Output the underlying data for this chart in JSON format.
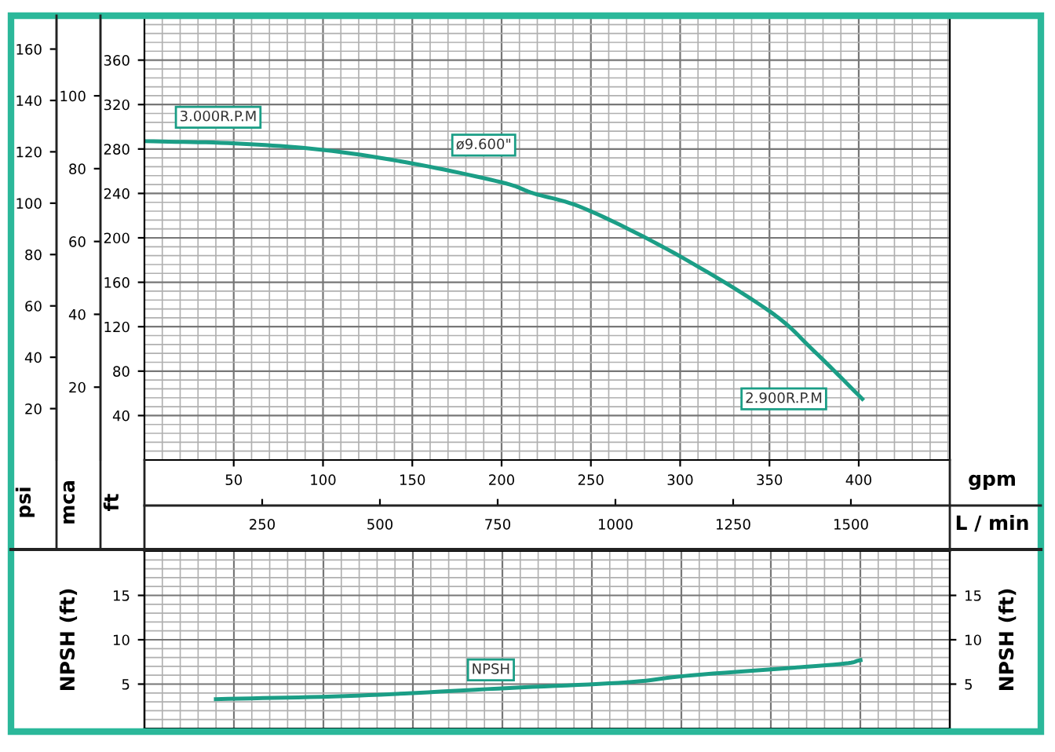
{
  "chart_data": [
    {
      "type": "line",
      "xlabel": "gpm",
      "x2label": "L / min",
      "ylabel": "ft",
      "y2label": "psi",
      "y3label": "mca",
      "xlim": [
        0,
        451
      ],
      "xticks": [
        50,
        100,
        150,
        200,
        250,
        300,
        350,
        400
      ],
      "x2lim": [
        0,
        1710
      ],
      "x2ticks": [
        250,
        500,
        750,
        1000,
        1250,
        1500
      ],
      "ylim": [
        0,
        400
      ],
      "yticks": [
        40,
        80,
        120,
        160,
        200,
        240,
        280,
        320,
        360
      ],
      "y2lim": [
        0,
        173
      ],
      "y2ticks": [
        20,
        40,
        60,
        80,
        100,
        120,
        140,
        160
      ],
      "y3lim": [
        0,
        122
      ],
      "y3ticks": [
        20,
        40,
        60,
        80,
        100
      ],
      "grid": true,
      "series": [
        {
          "color": "#1b9e86",
          "x": [
            1,
            51,
            101,
            150,
            200,
            218,
            247,
            297,
            350,
            375,
            402
          ],
          "values": [
            287,
            285,
            279,
            267,
            250,
            240,
            226,
            186,
            134,
            98,
            55
          ]
        }
      ],
      "annotations": [
        {
          "text": "3.000R.P.M",
          "x": 1,
          "y": 287
        },
        {
          "text": "ø9.600\"",
          "x": 190,
          "y": 254
        },
        {
          "text": "2.900R.P.M",
          "x": 402,
          "y": 55
        }
      ]
    },
    {
      "type": "line",
      "ylabel": "NPSH (ft)",
      "y2label": "NPSH (ft)",
      "xlim": [
        0,
        451
      ],
      "ylim": [
        0,
        20
      ],
      "yticks": [
        5,
        10,
        15
      ],
      "y2lim": [
        0,
        20
      ],
      "y2ticks": [
        5,
        10,
        15
      ],
      "tick_labels": "y",
      "grid": true,
      "series": [
        {
          "color": "#1b9e86",
          "x": [
            40,
            119,
            198,
            270,
            307,
            386,
            401
          ],
          "values": [
            3.3,
            3.7,
            4.5,
            5.2,
            6.0,
            7.2,
            7.7
          ]
        }
      ],
      "annotations": [
        {
          "text": "NPSH",
          "x": 194,
          "y": 6.6
        }
      ]
    }
  ]
}
